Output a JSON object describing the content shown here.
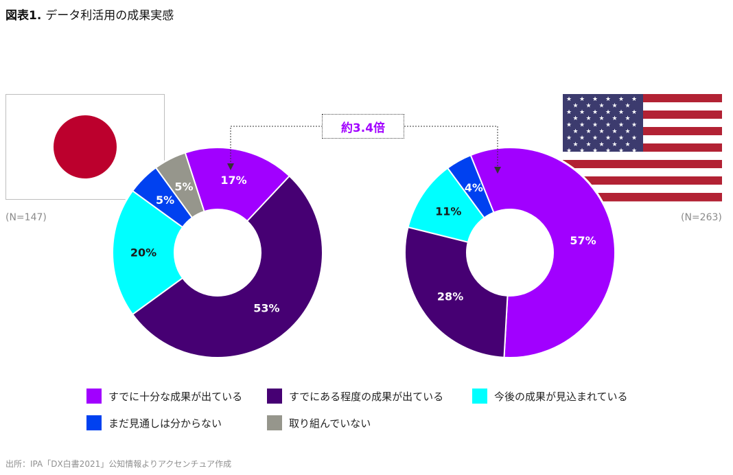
{
  "header": {
    "title_prefix": "図表1.",
    "title_text": "データ利活用の成果実感"
  },
  "colors": {
    "sufficient": "#a100ff",
    "some": "#460073",
    "expected": "#00ffff",
    "unclear": "#0041f0",
    "not_doing": "#96968c",
    "label_text": "#ffffff",
    "label_text_dark": "#1a1a1a",
    "accent_text": "#a100ff"
  },
  "flags": [
    {
      "name": "japan-flag-icon"
    },
    {
      "name": "usa-flag-icon"
    }
  ],
  "comparison": {
    "text": "約3.4倍"
  },
  "chart_data": [
    {
      "type": "pie",
      "donut": true,
      "sample_size": "(N=147)",
      "categories": [
        "すでに十分な成果が出ている",
        "すでにある程度の成果が出ている",
        "今後の成果が見込まれている",
        "まだ見通しは分からない",
        "取り組んでいない"
      ],
      "values": [
        17,
        53,
        20,
        5,
        5
      ],
      "labels": [
        "17%",
        "53%",
        "20%",
        "5%",
        "5%"
      ]
    },
    {
      "type": "pie",
      "donut": true,
      "sample_size": "(N=263)",
      "categories": [
        "すでに十分な成果が出ている",
        "すでにある程度の成果が出ている",
        "今後の成果が見込まれている",
        "まだ見通しは分からない",
        "取り組んでいない"
      ],
      "values": [
        57,
        28,
        11,
        4,
        0
      ],
      "labels": [
        "57%",
        "28%",
        "11%",
        "4%",
        ""
      ]
    }
  ],
  "legend": {
    "items": [
      {
        "label": "すでに十分な成果が出ている",
        "color": "#a100ff"
      },
      {
        "label": "すでにある程度の成果が出ている",
        "color": "#460073"
      },
      {
        "label": "今後の成果が見込まれている",
        "color": "#00ffff"
      },
      {
        "label": "まだ見通しは分からない",
        "color": "#0041f0"
      },
      {
        "label": "取り組んでいない",
        "color": "#96968c"
      }
    ]
  },
  "source": "出所：IPA「DX白書2021」公知情報よりアクセンチュア作成"
}
